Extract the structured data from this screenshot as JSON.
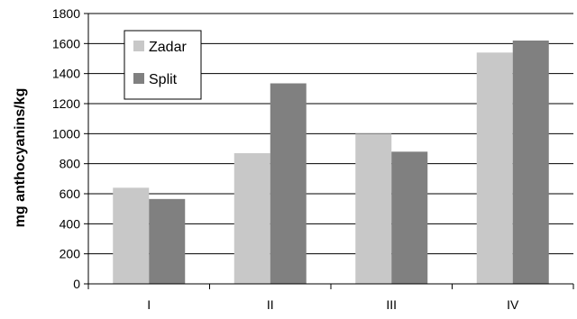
{
  "chart_data": {
    "type": "bar",
    "title": "",
    "xlabel": "",
    "ylabel": "mg anthocyanins/kg",
    "categories": [
      "I",
      "II",
      "III",
      "IV"
    ],
    "series": [
      {
        "name": "Zadar",
        "color": "#c8c8c8",
        "values": [
          640,
          870,
          1000,
          1540
        ]
      },
      {
        "name": "Split",
        "color": "#808080",
        "values": [
          565,
          1335,
          880,
          1620
        ]
      }
    ],
    "ylim": [
      0,
      1800
    ],
    "yticks": [
      0,
      200,
      400,
      600,
      800,
      1000,
      1200,
      1400,
      1600,
      1800
    ],
    "grid": true,
    "legend_position": "top-left"
  }
}
